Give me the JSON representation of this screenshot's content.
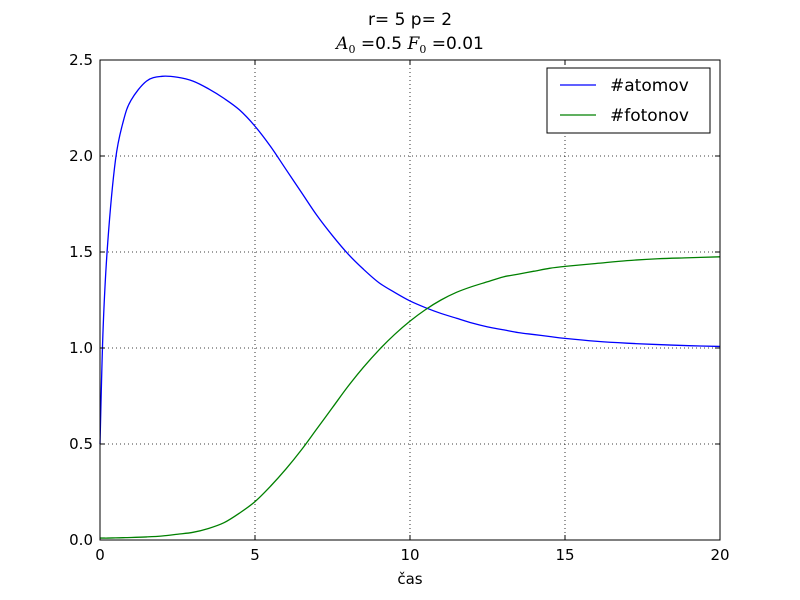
{
  "chart_data": {
    "type": "line",
    "title": "r= 5  p= 2",
    "subtitle": {
      "a_symbol": "A",
      "a_sub": "0",
      "a_eq": " =0.5 ",
      "f_symbol": "F",
      "f_sub": "0",
      "f_eq": " =0.01"
    },
    "xlabel": "čas",
    "ylabel": "",
    "xlim": [
      0,
      20
    ],
    "ylim": [
      0,
      2.5
    ],
    "xticks": [
      0,
      5,
      10,
      15,
      20
    ],
    "xtick_labels": [
      "0",
      "5",
      "10",
      "15",
      "20"
    ],
    "yticks": [
      0,
      0.5,
      1.0,
      1.5,
      2.0,
      2.5
    ],
    "ytick_labels": [
      "0.0",
      "0.5",
      "1.0",
      "1.5",
      "2.0",
      "2.5"
    ],
    "grid": true,
    "legend_position": "top-right",
    "x": [
      0,
      0.1,
      0.25,
      0.5,
      0.75,
      1,
      1.5,
      2,
      2.5,
      3,
      3.5,
      4,
      4.5,
      5,
      5.5,
      6,
      6.5,
      7,
      7.5,
      8,
      8.5,
      9,
      9.5,
      10,
      10.5,
      11,
      11.5,
      12,
      12.5,
      13,
      13.5,
      14,
      14.5,
      15,
      16,
      17,
      18,
      19,
      20
    ],
    "series": [
      {
        "name": "#atomov",
        "color": "#0000ff",
        "values": [
          0.5,
          1.1,
          1.55,
          1.98,
          2.18,
          2.29,
          2.39,
          2.415,
          2.41,
          2.39,
          2.35,
          2.3,
          2.24,
          2.155,
          2.05,
          1.93,
          1.81,
          1.69,
          1.585,
          1.49,
          1.41,
          1.34,
          1.29,
          1.245,
          1.21,
          1.18,
          1.155,
          1.13,
          1.11,
          1.095,
          1.08,
          1.07,
          1.06,
          1.05,
          1.035,
          1.025,
          1.018,
          1.012,
          1.008
        ]
      },
      {
        "name": "#fotonov",
        "color": "#008000",
        "values": [
          0.01,
          0.01,
          0.01,
          0.011,
          0.012,
          0.013,
          0.016,
          0.021,
          0.03,
          0.04,
          0.06,
          0.09,
          0.14,
          0.2,
          0.28,
          0.37,
          0.47,
          0.58,
          0.69,
          0.8,
          0.9,
          0.99,
          1.07,
          1.14,
          1.2,
          1.25,
          1.29,
          1.32,
          1.345,
          1.37,
          1.385,
          1.4,
          1.415,
          1.425,
          1.44,
          1.455,
          1.465,
          1.47,
          1.475
        ]
      }
    ]
  }
}
